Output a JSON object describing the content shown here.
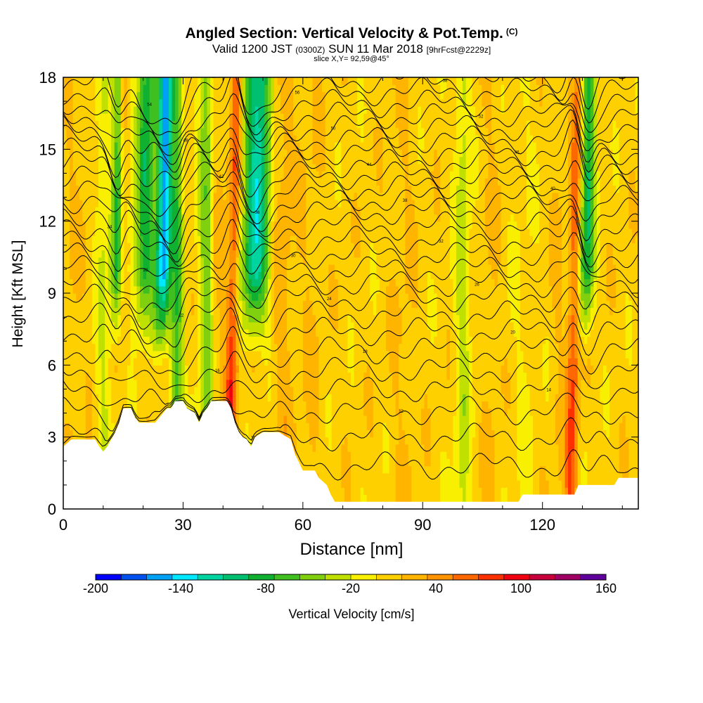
{
  "title": {
    "main": "Angled Section: Vertical Velocity & Pot.Temp.",
    "copyright": "(C)",
    "valid_prefix": "Valid 1200 JST",
    "utc": "(0300Z)",
    "valid_date": "SUN 11 Mar 2018",
    "forecast": "[9hrFcst@2229z]",
    "slice": "slice X,Y= 92,59@45°"
  },
  "chart_data": {
    "type": "heatmap",
    "xlabel": "Distance [nm]",
    "ylabel": "Height [Kft MSL]",
    "xlim": [
      0,
      144
    ],
    "ylim": [
      0,
      18
    ],
    "xticks": [
      0,
      30,
      60,
      90,
      120
    ],
    "yticks": [
      0,
      3,
      6,
      9,
      12,
      15,
      18
    ],
    "colorbar": {
      "label": "Vertical Velocity [cm/s]",
      "min": -200,
      "max": 160,
      "step": 20,
      "tick_labels": [
        "-200",
        "-140",
        "-80",
        "-20",
        "40",
        "100",
        "160"
      ],
      "colors": [
        "#0000ff",
        "#0050f0",
        "#00a0f5",
        "#00e8ff",
        "#00d4a0",
        "#00c070",
        "#10b030",
        "#40c020",
        "#80d010",
        "#c0e000",
        "#f8f000",
        "#ffd000",
        "#ffb400",
        "#ff9400",
        "#ff6800",
        "#ff3000",
        "#f00010",
        "#c8003c",
        "#a00064",
        "#60009c"
      ]
    },
    "background_value": 30,
    "updraft_downdraft_cores": [
      {
        "x": 2,
        "value": 40,
        "width": 2.5
      },
      {
        "x": 5,
        "value": 35,
        "width": 2.5
      },
      {
        "x": 10,
        "value": 0,
        "width": 2
      },
      {
        "x": 13.5,
        "value": -80,
        "width": 1.7
      },
      {
        "x": 15.5,
        "value": 30,
        "width": 1.5
      },
      {
        "x": 20,
        "value": -70,
        "width": 2.5
      },
      {
        "x": 25,
        "value": -160,
        "width": 2.2
      },
      {
        "x": 28.5,
        "value": -60,
        "width": 1.8
      },
      {
        "x": 32,
        "value": 30,
        "width": 2
      },
      {
        "x": 36,
        "value": -40,
        "width": 2
      },
      {
        "x": 39,
        "value": 40,
        "width": 2
      },
      {
        "x": 42.5,
        "value": 110,
        "width": 1.5
      },
      {
        "x": 48,
        "value": -110,
        "width": 3.5
      },
      {
        "x": 55,
        "value": 50,
        "width": 2.5
      },
      {
        "x": 62,
        "value": 40,
        "width": 3
      },
      {
        "x": 72,
        "value": 30,
        "width": 3
      },
      {
        "x": 85,
        "value": 40,
        "width": 3
      },
      {
        "x": 100,
        "value": -10,
        "width": 2
      },
      {
        "x": 107,
        "value": 40,
        "width": 2.5
      },
      {
        "x": 115,
        "value": 20,
        "width": 3
      },
      {
        "x": 124,
        "value": 40,
        "width": 1.8
      },
      {
        "x": 128,
        "value": 100,
        "width": 1.6
      },
      {
        "x": 131,
        "value": -80,
        "width": 2
      },
      {
        "x": 136,
        "value": 30,
        "width": 2.5
      },
      {
        "x": 142,
        "value": 30,
        "width": 2
      }
    ],
    "terrain_height_kft": [
      [
        0,
        2.6
      ],
      [
        2,
        2.9
      ],
      [
        6,
        2.9
      ],
      [
        8,
        2.9
      ],
      [
        9,
        2.6
      ],
      [
        10,
        2.4
      ],
      [
        11,
        2.6
      ],
      [
        12,
        2.9
      ],
      [
        13,
        3.2
      ],
      [
        14,
        3.6
      ],
      [
        15,
        4.2
      ],
      [
        17,
        4.2
      ],
      [
        18,
        3.8
      ],
      [
        19,
        3.6
      ],
      [
        20,
        3.6
      ],
      [
        23,
        3.6
      ],
      [
        25,
        4.0
      ],
      [
        26,
        4.2
      ],
      [
        27,
        4.2
      ],
      [
        28,
        4.5
      ],
      [
        30,
        4.5
      ],
      [
        31,
        4.2
      ],
      [
        33,
        4.0
      ],
      [
        34,
        3.6
      ],
      [
        35,
        4.0
      ],
      [
        36,
        4.2
      ],
      [
        37,
        4.5
      ],
      [
        41,
        4.5
      ],
      [
        42,
        4.2
      ],
      [
        43,
        3.6
      ],
      [
        44,
        3.2
      ],
      [
        45,
        3.0
      ],
      [
        46,
        2.9
      ],
      [
        47,
        2.6
      ],
      [
        48,
        3.0
      ],
      [
        50,
        3.2
      ],
      [
        54,
        3.2
      ],
      [
        57,
        2.9
      ],
      [
        58,
        2.3
      ],
      [
        60,
        1.6
      ],
      [
        63,
        1.6
      ],
      [
        64,
        1.3
      ],
      [
        66,
        1.0
      ],
      [
        67,
        0.6
      ],
      [
        68,
        0.3
      ],
      [
        70,
        0.3
      ],
      [
        75,
        0.3
      ],
      [
        114,
        0.3
      ],
      [
        115,
        0.6
      ],
      [
        128,
        0.6
      ],
      [
        129,
        1.0
      ],
      [
        138,
        1.0
      ],
      [
        139,
        1.3
      ],
      [
        144,
        1.3
      ]
    ],
    "theta_contour_ref_heights_kft": [
      1.8,
      3.0,
      4.1,
      5.0,
      5.8,
      6.6,
      7.4,
      8.1,
      8.8,
      9.4,
      10.0,
      10.6,
      11.2,
      11.8,
      12.4,
      12.9,
      13.4,
      13.9,
      14.4,
      14.9,
      15.4,
      15.9,
      16.4,
      16.9,
      17.4,
      17.9
    ],
    "theta_contour_label_values": [
      "8",
      "10",
      "12",
      "14",
      "16",
      "18",
      "20",
      "22",
      "24",
      "26",
      "28",
      "30",
      "32",
      "34",
      "36",
      "38",
      "40",
      "42",
      "44",
      "46",
      "48",
      "50",
      "52",
      "54",
      "56",
      "58"
    ]
  }
}
